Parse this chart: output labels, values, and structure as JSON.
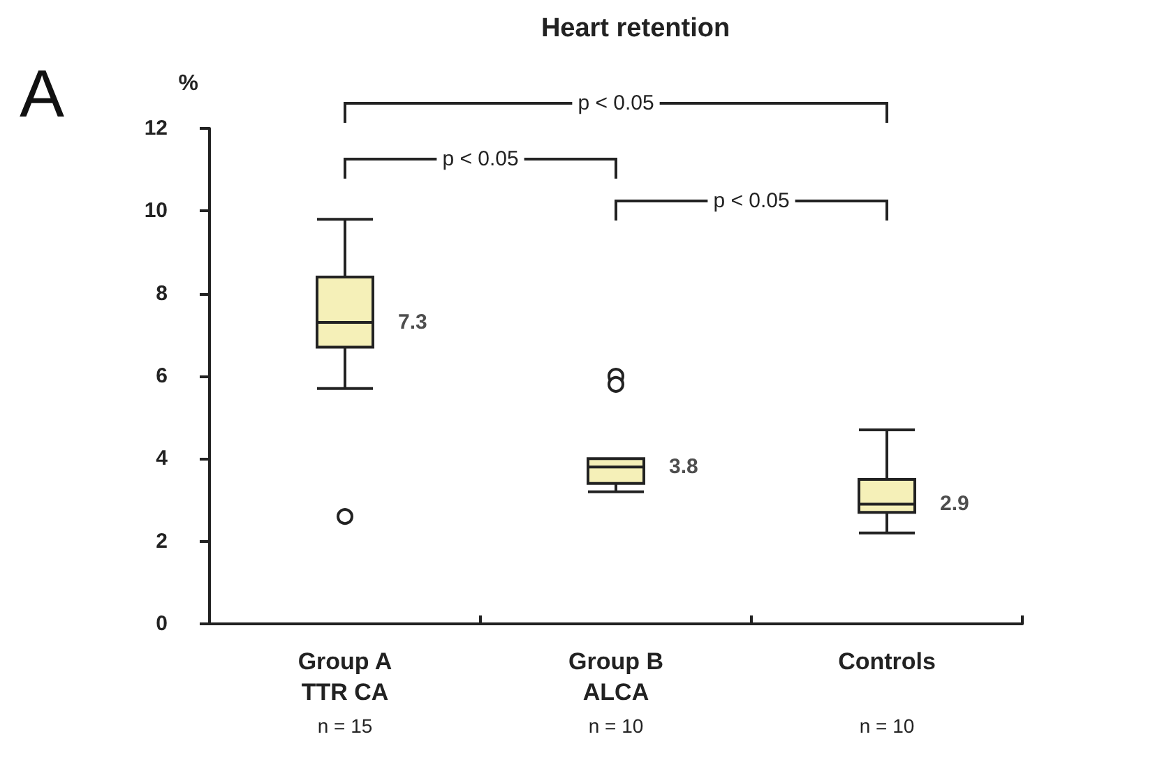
{
  "chart_data": {
    "type": "box",
    "title": "Heart retention",
    "ylabel": "%",
    "categories": [
      "Group A\nTTR CA\nn = 15",
      "Group B\nALCA\nn = 10",
      "Controls\n\nn = 10"
    ],
    "boxes": [
      {
        "low": 5.7,
        "q1": 6.7,
        "median": 7.3,
        "q3": 8.4,
        "high": 9.8,
        "outliers": [
          2.6
        ]
      },
      {
        "low": 3.2,
        "q1": 3.4,
        "median": 3.8,
        "q3": 4.0,
        "high": 4.0,
        "outliers": [
          6.0,
          5.8
        ]
      },
      {
        "low": 2.2,
        "q1": 2.7,
        "median": 2.9,
        "q3": 3.5,
        "high": 4.7
      }
    ],
    "value_labels": [
      "7.3",
      "3.8",
      "2.9"
    ],
    "color": "#f5f0b8",
    "ylim": [
      0,
      12
    ],
    "yticks": [
      0,
      2,
      4,
      6,
      8,
      10,
      12
    ],
    "grid": false,
    "annotations": [
      "A",
      "p < 0.05",
      "p < 0.05",
      "p < 0.05"
    ]
  }
}
